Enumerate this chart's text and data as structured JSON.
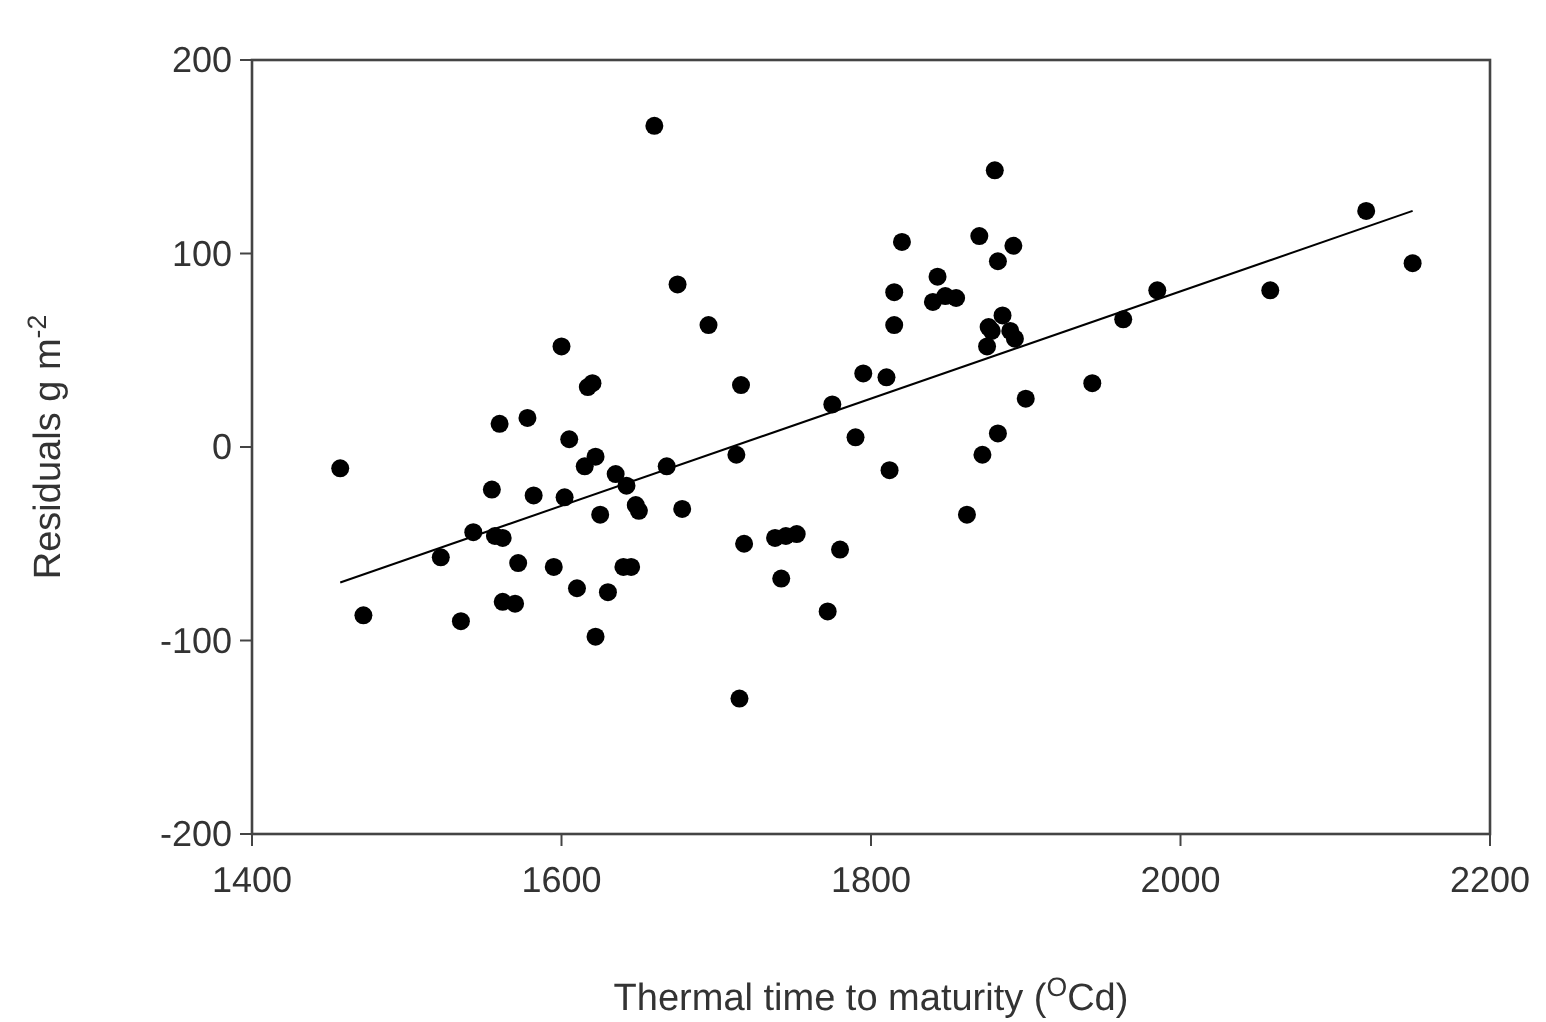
{
  "chart_data": {
    "type": "scatter",
    "xlabel": "Thermal time to maturity ($^{O}$Cd)",
    "ylabel": "Residuals g m$^{-2}$",
    "xlim": [
      1400,
      2200
    ],
    "ylim": [
      -200,
      200
    ],
    "xticks": [
      1400,
      1600,
      1800,
      2000,
      2200
    ],
    "yticks": [
      -200,
      -100,
      0,
      100,
      200
    ],
    "grid": false,
    "marker": "circle",
    "series": [
      {
        "color": "#000000",
        "x": [
          1457,
          1472,
          1522,
          1535,
          1543,
          1555,
          1557,
          1560,
          1562,
          1562,
          1570,
          1572,
          1578,
          1582,
          1595,
          1600,
          1602,
          1605,
          1610,
          1615,
          1617,
          1620,
          1622,
          1622,
          1625,
          1630,
          1635,
          1640,
          1642,
          1645,
          1648,
          1650,
          1660,
          1668,
          1675,
          1678,
          1695,
          1713,
          1715,
          1716,
          1718,
          1738,
          1742,
          1745,
          1752,
          1772,
          1775,
          1780,
          1790,
          1795,
          1810,
          1812,
          1815,
          1815,
          1820,
          1840,
          1843,
          1848,
          1855,
          1862,
          1870,
          1872,
          1875,
          1876,
          1878,
          1880,
          1882,
          1882,
          1885,
          1890,
          1892,
          1893,
          1900,
          1943,
          1963,
          1985,
          2058,
          2120,
          2150
        ],
        "values": [
          -11,
          -87,
          -57,
          -90,
          -44,
          -22,
          -46,
          12,
          -47,
          -80,
          -81,
          -60,
          15,
          -25,
          -62,
          52,
          -26,
          4,
          -73,
          -10,
          31,
          33,
          -5,
          -98,
          -35,
          -75,
          -14,
          -62,
          -20,
          -62,
          -30,
          -33,
          166,
          -10,
          84,
          -32,
          63,
          -4,
          -130,
          32,
          -50,
          -47,
          -68,
          -46,
          -45,
          -85,
          22,
          -53,
          5,
          38,
          36,
          -12,
          80,
          63,
          106,
          75,
          88,
          78,
          77,
          -35,
          109,
          -4,
          52,
          62,
          60,
          143,
          96,
          7,
          68,
          60,
          104,
          56,
          25,
          33,
          66,
          81,
          81,
          122,
          95
        ]
      },
      {
        "type": "line",
        "color": "#000000",
        "line_style": "solid",
        "marker": "none",
        "x": [
          1457,
          2150
        ],
        "values": [
          -70,
          122
        ]
      }
    ]
  }
}
